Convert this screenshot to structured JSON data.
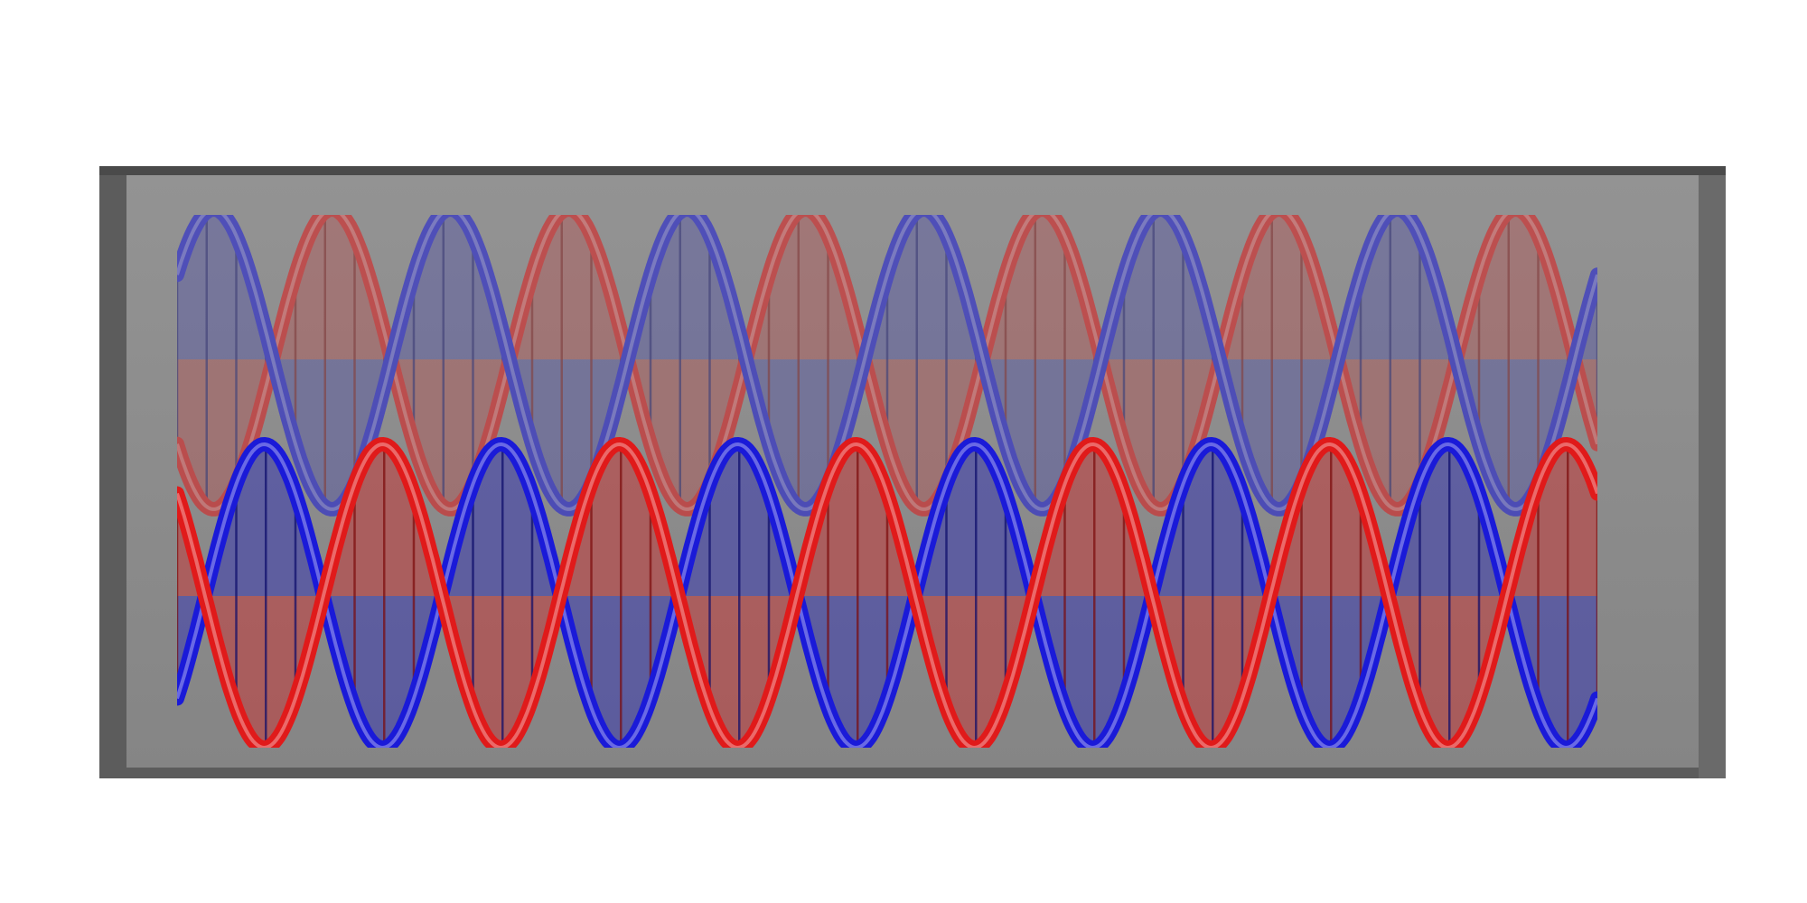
{
  "scene": {
    "subject": "double-helix-waves-in-box",
    "colors": {
      "background": "#ffffff",
      "box_outer": "#5a5a5a",
      "box_inner": "#8c8c8c",
      "strand_red": "#e01a1a",
      "strand_blue": "#1a1ad8",
      "fill_red": "#c43a3a",
      "fill_blue": "#3a3ab0"
    },
    "helix_front": {
      "cycles": 6,
      "strands": [
        "red",
        "blue"
      ]
    },
    "helix_back": {
      "cycles": 6,
      "strands": [
        "blue",
        "red"
      ],
      "translucent": true
    }
  }
}
